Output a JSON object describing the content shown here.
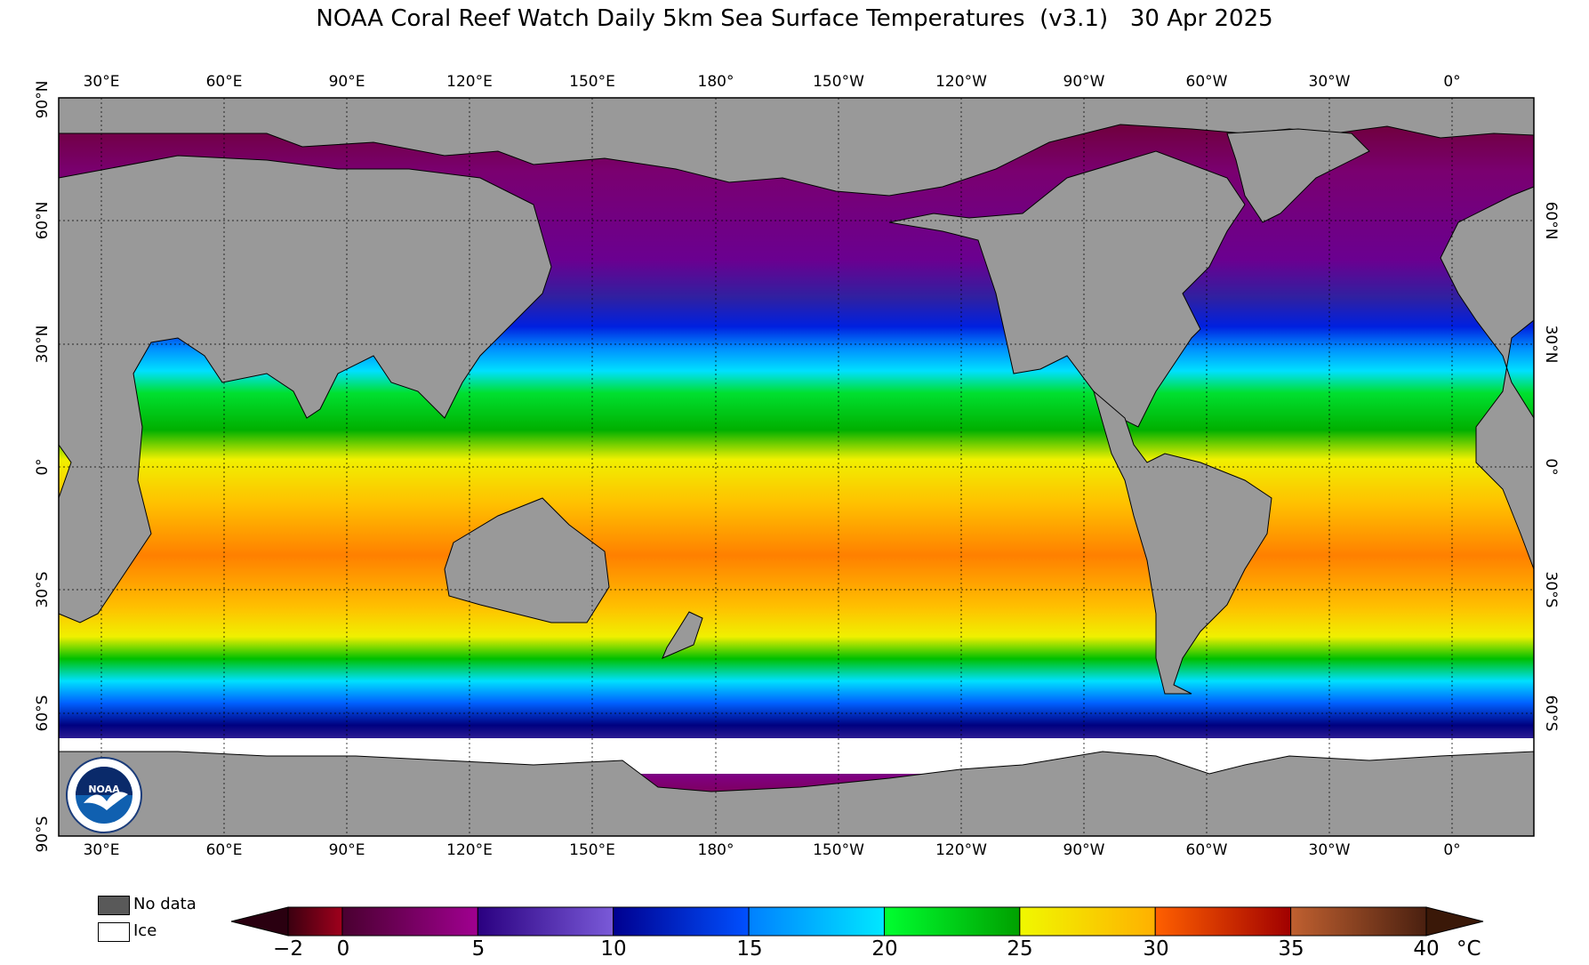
{
  "title": "NOAA Coral Reef Watch Daily 5km Sea Surface Temperatures  (v3.1)   30 Apr 2025",
  "map": {
    "lon_labels": [
      "30°E",
      "60°E",
      "90°E",
      "120°E",
      "150°E",
      "180°",
      "150°W",
      "120°W",
      "90°W",
      "60°W",
      "30°W",
      "0°"
    ],
    "lat_labels_left": [
      "90°N",
      "60°N",
      "30°N",
      "0°",
      "30°S",
      "60°S",
      "90°S"
    ],
    "lat_labels_right": [
      "60°N",
      "30°N",
      "0°",
      "30°S",
      "60°S"
    ],
    "land_color": "#999999",
    "ice_color": "#ffffff"
  },
  "legend": {
    "nodata_label": "No data",
    "nodata_color": "#595959",
    "ice_label": "Ice",
    "ice_color": "#ffffff"
  },
  "colorbar": {
    "unit": "°C",
    "ticks": [
      "−2",
      "0",
      "5",
      "10",
      "15",
      "20",
      "25",
      "30",
      "35",
      "40"
    ],
    "tick_values": [
      -2,
      0,
      5,
      10,
      15,
      20,
      25,
      30,
      35,
      40
    ],
    "segments": [
      {
        "from": -2,
        "to": 0,
        "c1": "#3a0010",
        "c2": "#a0001c"
      },
      {
        "from": 0,
        "to": 5,
        "c1": "#4a0030",
        "c2": "#a00090"
      },
      {
        "from": 5,
        "to": 10,
        "c1": "#2a0080",
        "c2": "#7a5ad8"
      },
      {
        "from": 10,
        "to": 15,
        "c1": "#000090",
        "c2": "#0050ff"
      },
      {
        "from": 15,
        "to": 20,
        "c1": "#0080ff",
        "c2": "#00e8ff"
      },
      {
        "from": 20,
        "to": 25,
        "c1": "#00ff30",
        "c2": "#00a000"
      },
      {
        "from": 25,
        "to": 30,
        "c1": "#f0f800",
        "c2": "#ffb000"
      },
      {
        "from": 30,
        "to": 35,
        "c1": "#ff6000",
        "c2": "#a00000"
      },
      {
        "from": 35,
        "to": 40,
        "c1": "#c06030",
        "c2": "#4a2010"
      }
    ],
    "arrow_low_color": "#2a0010",
    "arrow_high_color": "#3a1808"
  },
  "logo": {
    "text": "NOAA"
  }
}
